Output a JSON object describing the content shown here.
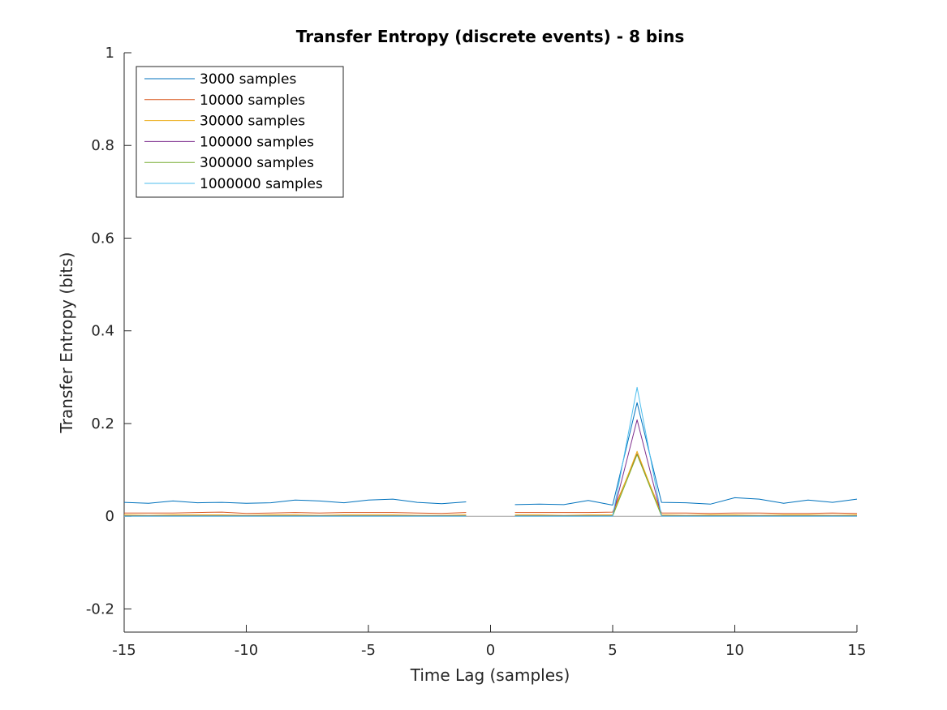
{
  "chart_data": {
    "type": "line",
    "title": "Transfer Entropy (discrete events) - 8 bins",
    "xlabel": "Time Lag (samples)",
    "ylabel": "Transfer Entropy (bits)",
    "xlim": [
      -15,
      15
    ],
    "ylim": [
      -0.25,
      1
    ],
    "xticks": [
      -15,
      -10,
      -5,
      0,
      5,
      10,
      15
    ],
    "yticks": [
      -0.2,
      0,
      0.2,
      0.4,
      0.6,
      0.8,
      1
    ],
    "ytick_labels": [
      "-0.2",
      "0",
      "0.2",
      "0.4",
      "0.6",
      "0.8",
      "1"
    ],
    "legend_position": "top-left",
    "grid": false,
    "x": [
      -15,
      -14,
      -13,
      -12,
      -11,
      -10,
      -9,
      -8,
      -7,
      -6,
      -5,
      -4,
      -3,
      -2,
      -1,
      1,
      2,
      3,
      4,
      5,
      6,
      7,
      8,
      9,
      10,
      11,
      12,
      13,
      14,
      15
    ],
    "series": [
      {
        "name": "3000 samples",
        "color": "#0072BD",
        "values": [
          0.03,
          0.028,
          0.033,
          0.029,
          0.03,
          0.028,
          0.029,
          0.035,
          0.033,
          0.029,
          0.035,
          0.037,
          0.03,
          0.027,
          0.031,
          0.025,
          0.026,
          0.025,
          0.034,
          0.024,
          0.245,
          0.03,
          0.029,
          0.026,
          0.04,
          0.037,
          0.028,
          0.035,
          0.03,
          0.037
        ]
      },
      {
        "name": "10000 samples",
        "color": "#D95319",
        "values": [
          0.007,
          0.007,
          0.007,
          0.008,
          0.009,
          0.006,
          0.007,
          0.008,
          0.007,
          0.008,
          0.008,
          0.008,
          0.007,
          0.006,
          0.008,
          0.008,
          0.008,
          0.008,
          0.008,
          0.009,
          0.135,
          0.007,
          0.007,
          0.006,
          0.007,
          0.007,
          0.006,
          0.006,
          0.007,
          0.006
        ]
      },
      {
        "name": "30000 samples",
        "color": "#EDB120",
        "values": [
          0.003,
          0.002,
          0.003,
          0.003,
          0.003,
          0.002,
          0.003,
          0.003,
          0.002,
          0.003,
          0.003,
          0.003,
          0.002,
          0.002,
          0.003,
          0.003,
          0.003,
          0.002,
          0.003,
          0.003,
          0.14,
          0.003,
          0.002,
          0.003,
          0.003,
          0.002,
          0.003,
          0.003,
          0.002,
          0.003
        ]
      },
      {
        "name": "100000 samples",
        "color": "#7E2F8E",
        "values": [
          0.001,
          0.001,
          0.001,
          0.001,
          0.001,
          0.001,
          0.001,
          0.001,
          0.001,
          0.001,
          0.001,
          0.001,
          0.001,
          0.001,
          0.001,
          0.001,
          0.001,
          0.001,
          0.001,
          0.001,
          0.208,
          0.001,
          0.001,
          0.001,
          0.001,
          0.001,
          0.001,
          0.001,
          0.001,
          0.001
        ]
      },
      {
        "name": "300000 samples",
        "color": "#77AC30",
        "values": [
          0.0005,
          0.0005,
          0.0005,
          0.0005,
          0.0005,
          0.0005,
          0.0005,
          0.0005,
          0.0005,
          0.0005,
          0.0005,
          0.0005,
          0.0005,
          0.0005,
          0.0005,
          0.0005,
          0.0005,
          0.0005,
          0.0005,
          0.0005,
          0.133,
          0.0005,
          0.0005,
          0.0005,
          0.0005,
          0.0005,
          0.0005,
          0.0005,
          0.0005,
          0.0005
        ]
      },
      {
        "name": "1000000 samples",
        "color": "#4DBEEE",
        "values": [
          0.0002,
          0.0002,
          0.0002,
          0.0002,
          0.0002,
          0.0002,
          0.0002,
          0.0002,
          0.0002,
          0.0002,
          0.0002,
          0.0002,
          0.0002,
          0.0002,
          0.0002,
          0.0002,
          0.0002,
          0.0002,
          0.0002,
          0.0002,
          0.278,
          0.0002,
          0.0002,
          0.0002,
          0.0002,
          0.0002,
          0.0002,
          0.0002,
          0.0002,
          0.0002
        ]
      }
    ],
    "zero_line_color": "#A0A0A0"
  }
}
